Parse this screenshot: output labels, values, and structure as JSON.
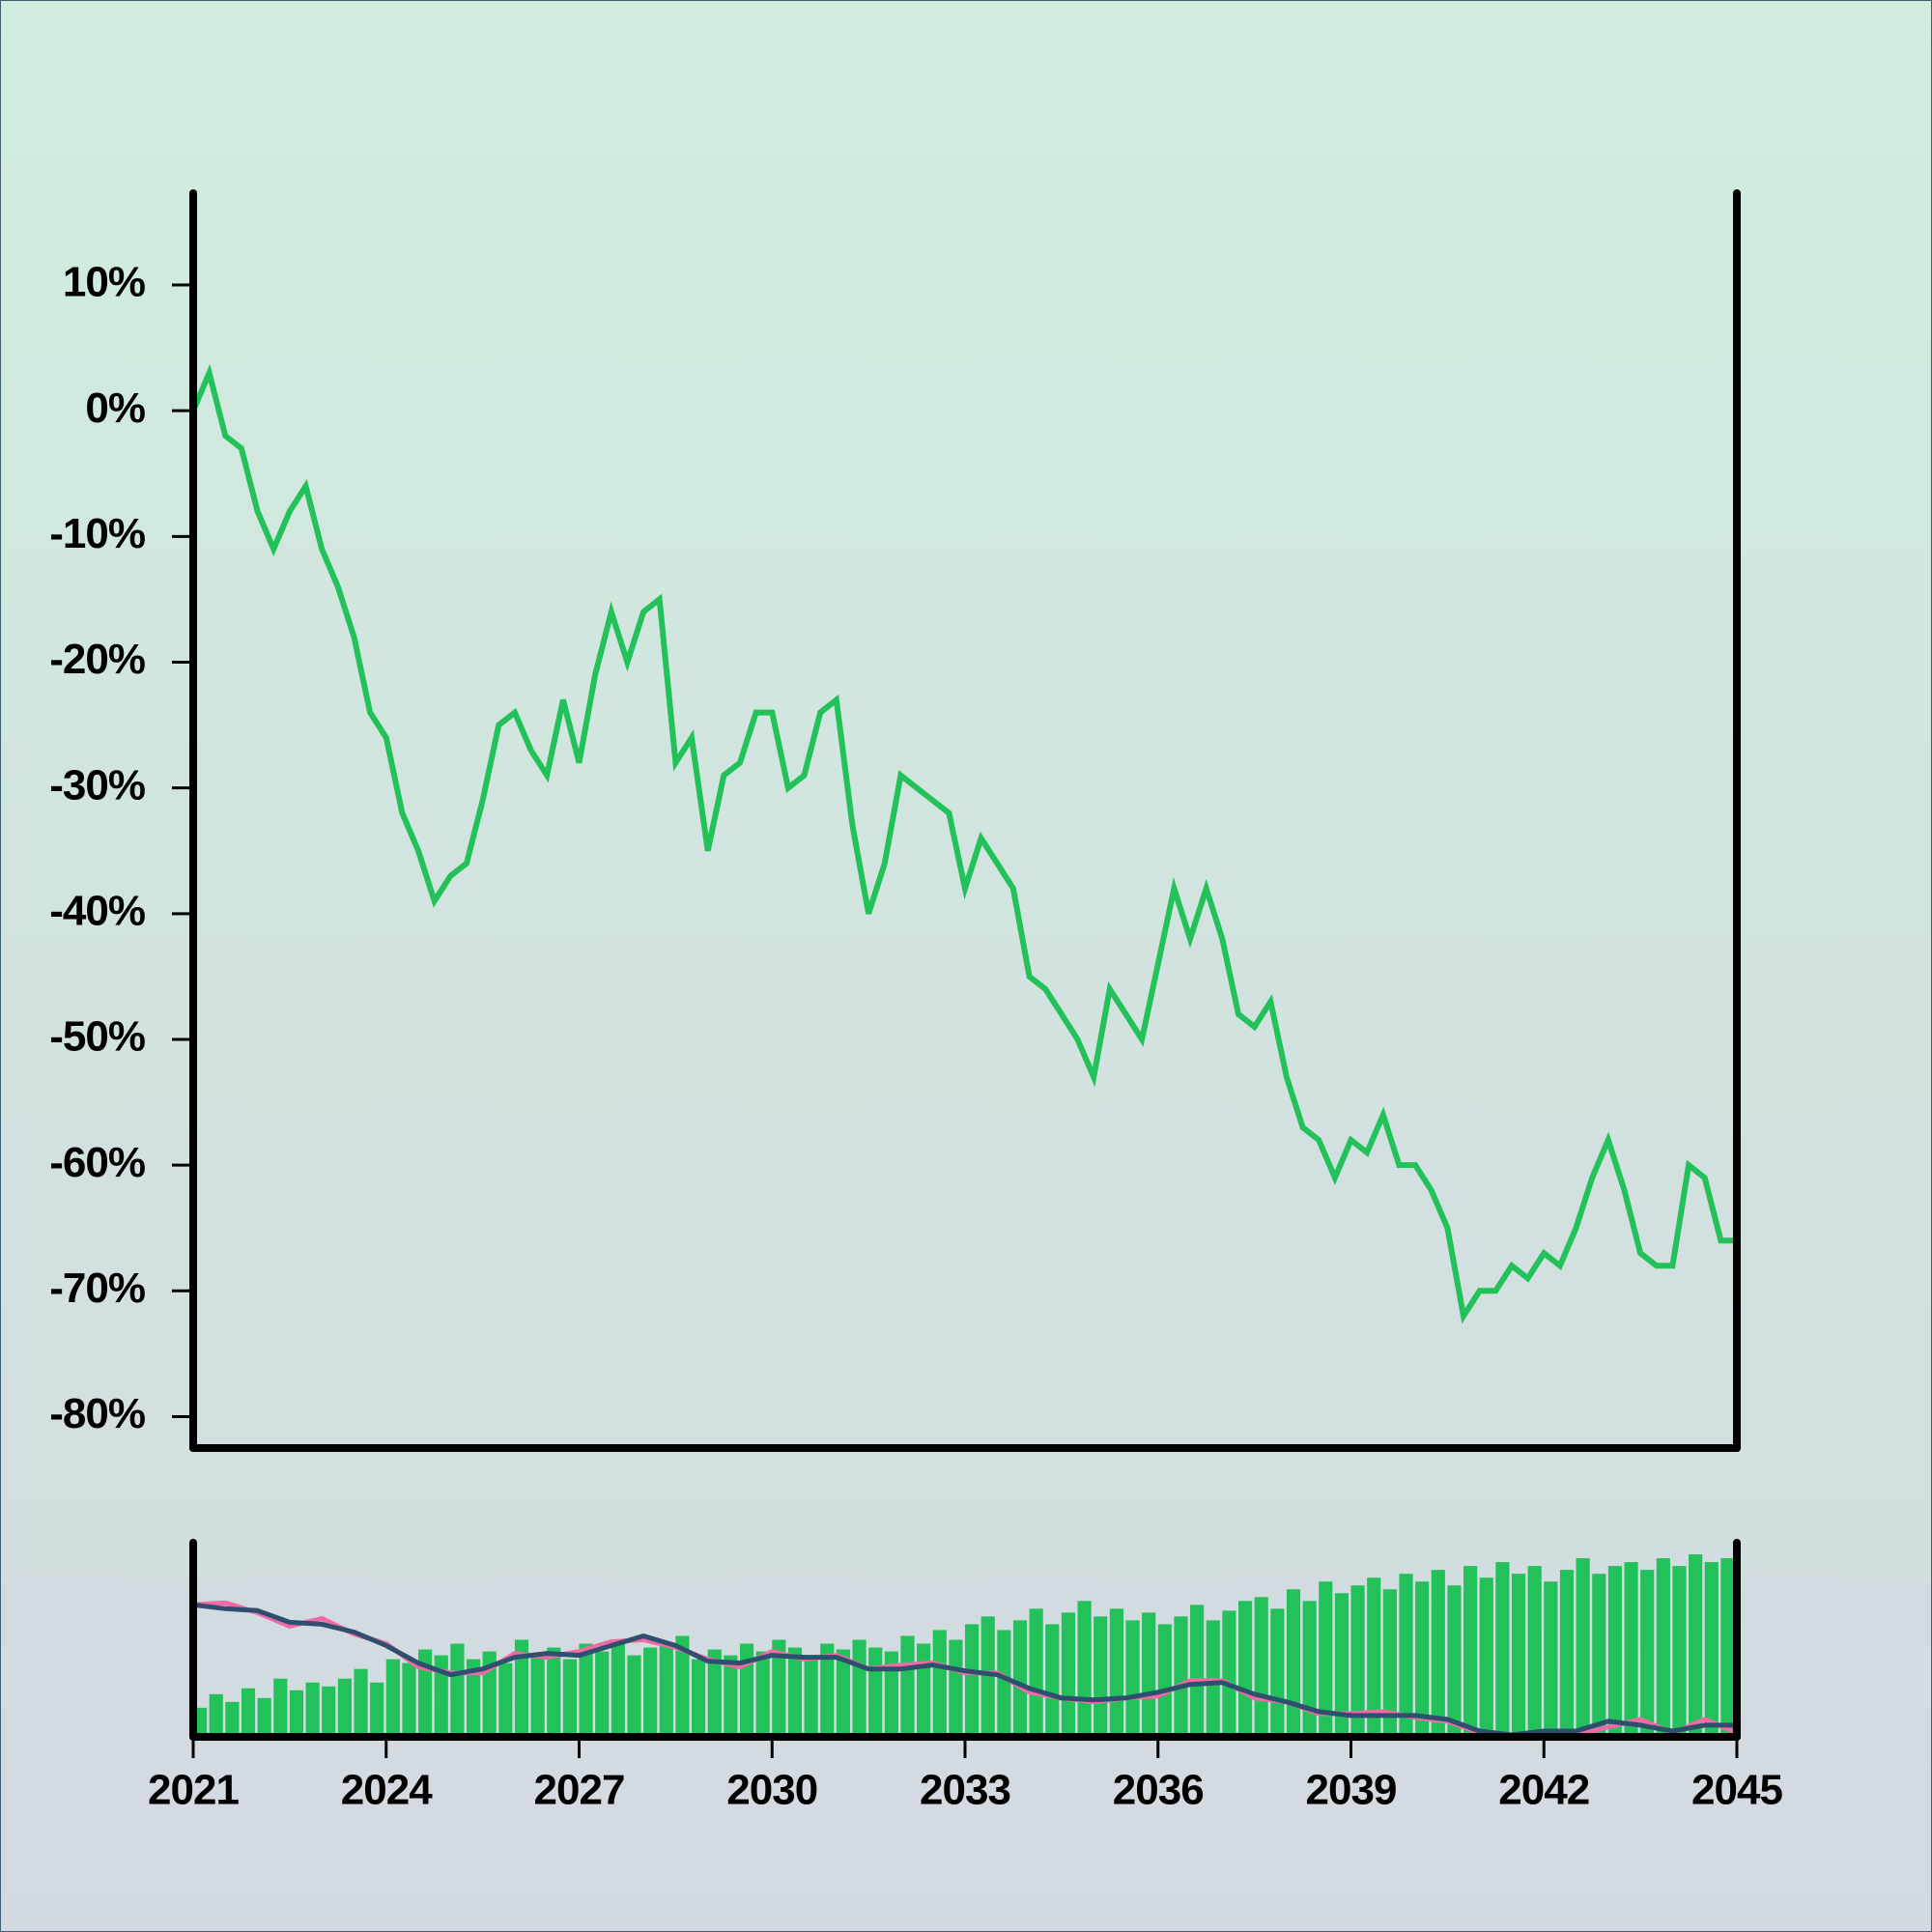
{
  "chart_data": [
    {
      "type": "line",
      "x": [
        2021,
        2021.25,
        2021.5,
        2021.75,
        2022,
        2022.25,
        2022.5,
        2022.75,
        2023,
        2023.25,
        2023.5,
        2023.75,
        2024,
        2024.25,
        2024.5,
        2024.75,
        2025,
        2025.25,
        2025.5,
        2025.75,
        2026,
        2026.25,
        2026.5,
        2026.75,
        2027,
        2027.25,
        2027.5,
        2027.75,
        2028,
        2028.25,
        2028.5,
        2028.75,
        2029,
        2029.25,
        2029.5,
        2029.75,
        2030,
        2030.25,
        2030.5,
        2030.75,
        2031,
        2031.25,
        2031.5,
        2031.75,
        2032,
        2032.25,
        2032.5,
        2032.75,
        2033,
        2033.25,
        2033.5,
        2033.75,
        2034,
        2034.25,
        2034.5,
        2034.75,
        2035,
        2035.25,
        2035.5,
        2035.75,
        2036,
        2036.25,
        2036.5,
        2036.75,
        2037,
        2037.25,
        2037.5,
        2037.75,
        2038,
        2038.25,
        2038.5,
        2038.75,
        2039,
        2039.25,
        2039.5,
        2039.75,
        2040,
        2040.25,
        2040.5,
        2040.75,
        2041,
        2041.25,
        2041.5,
        2041.75,
        2042,
        2042.25,
        2042.5,
        2042.75,
        2043,
        2043.25,
        2043.5,
        2043.75,
        2044,
        2044.25,
        2044.5,
        2044.75,
        2045
      ],
      "series": [
        {
          "color": "#22c15a",
          "values": [
            0,
            3,
            -2,
            -3,
            -8,
            -11,
            -8,
            -6,
            -11,
            -14,
            -18,
            -24,
            -26,
            -32,
            -35,
            -39,
            -37,
            -36,
            -31,
            -25,
            -24,
            -27,
            -29,
            -23,
            -28,
            -21,
            -16,
            -20,
            -16,
            -15,
            -28,
            -26,
            -35,
            -29,
            -28,
            -24,
            -24,
            -30,
            -29,
            -24,
            -23,
            -33,
            -40,
            -36,
            -29,
            -30,
            -31,
            -32,
            -38,
            -34,
            -36,
            -38,
            -45,
            -46,
            -48,
            -50,
            -53,
            -46,
            -48,
            -50,
            -44,
            -38,
            -42,
            -38,
            -42,
            -48,
            -49,
            -47,
            -53,
            -57,
            -58,
            -61,
            -58,
            -59,
            -56,
            -60,
            -60,
            -62,
            -65,
            -72,
            -70,
            -70,
            -68,
            -69,
            -67,
            -68,
            -65,
            -61,
            -58,
            -62,
            -67,
            -68,
            -68,
            -60,
            -61,
            -66,
            -66
          ]
        }
      ],
      "xlim": [
        2021,
        2045
      ],
      "ylim": [
        -82.5,
        17.3
      ],
      "yticks": [
        {
          "value": 10,
          "label": "10%"
        },
        {
          "value": 0,
          "label": "0%"
        },
        {
          "value": -10,
          "label": "-10%"
        },
        {
          "value": -20,
          "label": "-20%"
        },
        {
          "value": -30,
          "label": "-30%"
        },
        {
          "value": -40,
          "label": "-40%"
        },
        {
          "value": -50,
          "label": "-50%"
        },
        {
          "value": -60,
          "label": "-60%"
        },
        {
          "value": -70,
          "label": "-70%"
        },
        {
          "value": -80,
          "label": "-80%"
        }
      ]
    },
    {
      "type": "bar-line",
      "x": [
        2021,
        2021.25,
        2021.5,
        2021.75,
        2022,
        2022.25,
        2022.5,
        2022.75,
        2023,
        2023.25,
        2023.5,
        2023.75,
        2024,
        2024.25,
        2024.5,
        2024.75,
        2025,
        2025.25,
        2025.5,
        2025.75,
        2026,
        2026.25,
        2026.5,
        2026.75,
        2027,
        2027.25,
        2027.5,
        2027.75,
        2028,
        2028.25,
        2028.5,
        2028.75,
        2029,
        2029.25,
        2029.5,
        2029.75,
        2030,
        2030.25,
        2030.5,
        2030.75,
        2031,
        2031.25,
        2031.5,
        2031.75,
        2032,
        2032.25,
        2032.5,
        2032.75,
        2033,
        2033.25,
        2033.5,
        2033.75,
        2034,
        2034.25,
        2034.5,
        2034.75,
        2035,
        2035.25,
        2035.5,
        2035.75,
        2036,
        2036.25,
        2036.5,
        2036.75,
        2037,
        2037.25,
        2037.5,
        2037.75,
        2038,
        2038.25,
        2038.5,
        2038.75,
        2039,
        2039.25,
        2039.5,
        2039.75,
        2040,
        2040.25,
        2040.5,
        2040.75,
        2041,
        2041.25,
        2041.5,
        2041.75,
        2042,
        2042.25,
        2042.5,
        2042.75,
        2043,
        2043.25,
        2043.5,
        2043.75,
        2044,
        2044.25,
        2044.5,
        2044.75,
        2045
      ],
      "bars": {
        "color": "#22c15a",
        "values": [
          15,
          22,
          18,
          25,
          20,
          30,
          24,
          28,
          26,
          30,
          35,
          28,
          40,
          38,
          45,
          42,
          48,
          40,
          44,
          38,
          50,
          42,
          46,
          40,
          48,
          44,
          50,
          42,
          46,
          48,
          52,
          40,
          45,
          42,
          48,
          44,
          50,
          46,
          42,
          48,
          45,
          50,
          46,
          44,
          52,
          48,
          55,
          50,
          58,
          62,
          55,
          60,
          66,
          58,
          64,
          70,
          62,
          66,
          60,
          64,
          58,
          62,
          68,
          60,
          65,
          70,
          72,
          66,
          76,
          70,
          80,
          74,
          78,
          82,
          76,
          84,
          80,
          86,
          78,
          88,
          82,
          90,
          84,
          88,
          80,
          86,
          92,
          84,
          88,
          90,
          86,
          92,
          88,
          94,
          90,
          92,
          88
        ]
      },
      "line_x": [
        2021,
        2021.5,
        2022,
        2022.5,
        2023,
        2023.5,
        2024,
        2024.5,
        2025,
        2025.5,
        2026,
        2026.5,
        2027,
        2027.5,
        2028,
        2028.5,
        2029,
        2029.5,
        2030,
        2030.5,
        2031,
        2031.5,
        2032,
        2032.5,
        2033,
        2033.5,
        2034,
        2034.5,
        2035,
        2035.5,
        2036,
        2036.5,
        2037,
        2037.5,
        2038,
        2038.5,
        2039,
        2039.5,
        2040,
        2040.5,
        2041,
        2041.5,
        2042,
        2042.5,
        2043,
        2043.5,
        2044,
        2044.5,
        2045
      ],
      "lines": [
        {
          "color": "#f06aa6",
          "values": [
            68,
            69,
            64,
            57,
            61,
            53,
            48,
            36,
            33,
            33,
            43,
            41,
            44,
            49,
            50,
            46,
            40,
            36,
            44,
            40,
            42,
            35,
            37,
            38,
            33,
            33,
            23,
            20,
            18,
            20,
            21,
            29,
            29,
            20,
            18,
            12,
            12,
            13,
            10,
            8,
            2,
            0,
            3,
            1,
            5,
            9,
            2,
            9,
            2
          ]
        },
        {
          "color": "#2f4f6f",
          "values": [
            68,
            66,
            65,
            59,
            58,
            54,
            47,
            38,
            32,
            35,
            41,
            43,
            42,
            47,
            52,
            47,
            39,
            38,
            42,
            41,
            41,
            35,
            35,
            37,
            34,
            32,
            25,
            20,
            19,
            20,
            23,
            27,
            28,
            22,
            18,
            13,
            11,
            11,
            11,
            9,
            3,
            1,
            3,
            3,
            8,
            6,
            3,
            6,
            6
          ]
        }
      ],
      "xlim": [
        2021,
        2045
      ],
      "ylim": [
        0,
        100
      ],
      "xticks": [
        2021,
        2024,
        2027,
        2030,
        2033,
        2036,
        2039,
        2042,
        2045
      ]
    }
  ]
}
